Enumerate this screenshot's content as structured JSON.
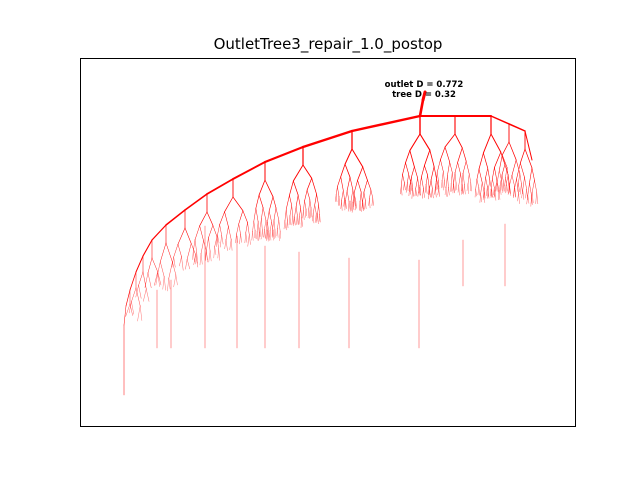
{
  "figure": {
    "title": "OutletTree3_repair_1.0_postop",
    "annotation_line1": "outlet D = 0.772",
    "annotation_line2": "tree D = 0.32",
    "line_color": "#ff0000",
    "frame_color": "#000000",
    "background": "#ffffff"
  }
}
